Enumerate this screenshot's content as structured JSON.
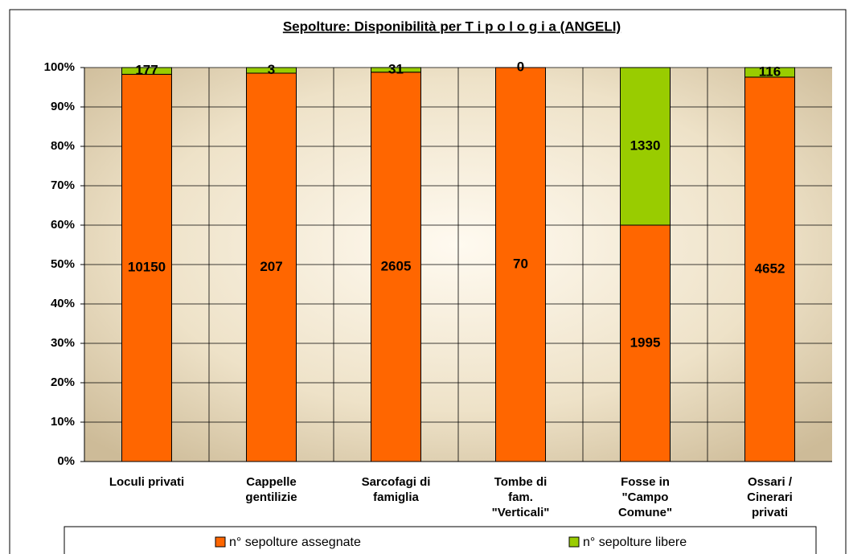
{
  "chart_data": {
    "type": "bar",
    "stacking": "percent",
    "title": "Sepolture: Disponibilità per  T i p o l o g i a  (ANGELI)",
    "categories": [
      "Loculi privati",
      "Cappelle\ngentilizie",
      "Sarcofagi di\nfamiglia",
      "Tombe di\nfam.\n\"Verticali\"",
      "Fosse in\n\"Campo\nComune\"",
      "Ossari /\nCinerari\nprivati"
    ],
    "series": [
      {
        "name": "n° sepolture assegnate",
        "color": "#ff6600",
        "values": [
          10150,
          207,
          2605,
          70,
          1995,
          4652
        ]
      },
      {
        "name": "n° sepolture libere",
        "color": "#99cc00",
        "values": [
          177,
          3,
          31,
          0,
          1330,
          116
        ]
      }
    ],
    "ylim": [
      0,
      100
    ],
    "yticks": [
      {
        "value": 0,
        "label": "0%"
      },
      {
        "value": 10,
        "label": "10%"
      },
      {
        "value": 20,
        "label": "20%"
      },
      {
        "value": 30,
        "label": "30%"
      },
      {
        "value": 40,
        "label": "40%"
      },
      {
        "value": 50,
        "label": "50%"
      },
      {
        "value": 60,
        "label": "60%"
      },
      {
        "value": 70,
        "label": "70%"
      },
      {
        "value": 80,
        "label": "80%"
      },
      {
        "value": 90,
        "label": "90%"
      },
      {
        "value": 100,
        "label": "100%"
      }
    ],
    "grid": true,
    "legend": "bottom"
  }
}
